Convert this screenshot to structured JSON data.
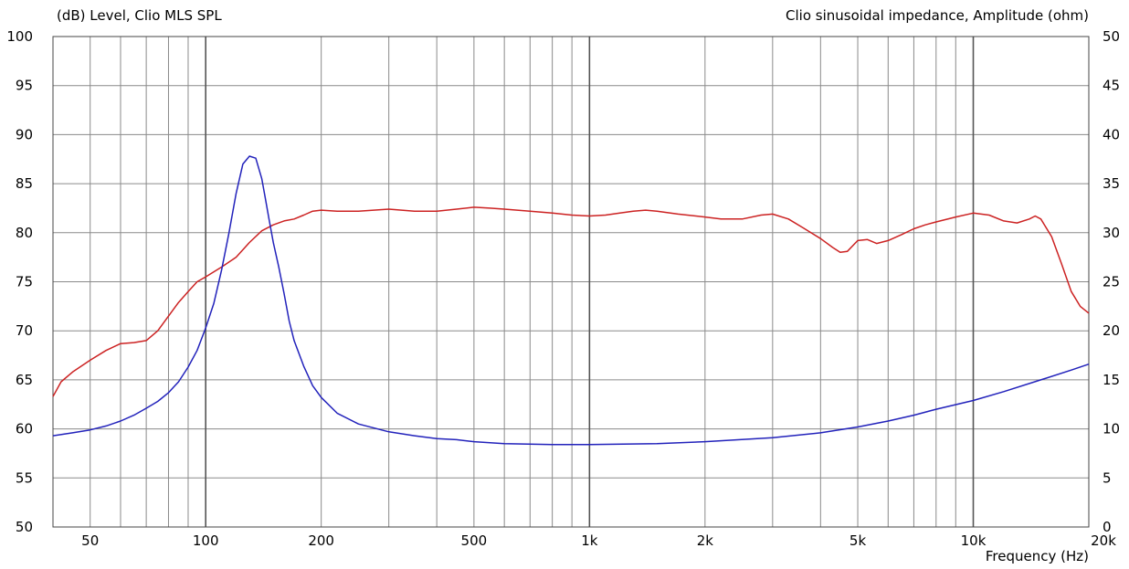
{
  "chart_data": {
    "type": "line",
    "left_axis_title": "(dB)  Level, Clio MLS SPL",
    "right_axis_title": "Clio sinusoidal impedance, Amplitude  (ohm)",
    "xlabel": "Frequency  (Hz)",
    "x_scale": "log",
    "xlim": [
      40,
      20000
    ],
    "x_ticks": [
      {
        "v": 50,
        "label": "50"
      },
      {
        "v": 100,
        "label": "100"
      },
      {
        "v": 200,
        "label": "200"
      },
      {
        "v": 500,
        "label": "500"
      },
      {
        "v": 1000,
        "label": "1k"
      },
      {
        "v": 2000,
        "label": "2k"
      },
      {
        "v": 5000,
        "label": "5k"
      },
      {
        "v": 10000,
        "label": "10k"
      },
      {
        "v": 20000,
        "label": "20k"
      }
    ],
    "ylim_left": [
      50,
      100
    ],
    "y_ticks_left": [
      100,
      95,
      90,
      85,
      80,
      75,
      70,
      65,
      60,
      55,
      50
    ],
    "ylim_right": [
      0,
      50
    ],
    "y_ticks_right": [
      50,
      45,
      40,
      35,
      30,
      25,
      20,
      15,
      10,
      5,
      0
    ],
    "grid": true,
    "series": [
      {
        "axis": "left",
        "color": "#cc2222",
        "x": [
          40,
          42,
          45,
          50,
          55,
          60,
          65,
          70,
          75,
          80,
          85,
          90,
          95,
          100,
          110,
          120,
          130,
          140,
          150,
          160,
          170,
          180,
          190,
          200,
          220,
          250,
          300,
          350,
          400,
          450,
          500,
          550,
          600,
          700,
          800,
          900,
          1000,
          1100,
          1200,
          1300,
          1400,
          1500,
          1700,
          2000,
          2200,
          2500,
          2800,
          3000,
          3300,
          3600,
          4000,
          4300,
          4500,
          4700,
          5000,
          5300,
          5600,
          6000,
          6500,
          7000,
          7500,
          8000,
          9000,
          10000,
          11000,
          12000,
          13000,
          14000,
          14500,
          15000,
          16000,
          17000,
          18000,
          19000,
          20000
        ],
        "y": [
          63.3,
          64.8,
          65.8,
          67.0,
          68.0,
          68.7,
          68.8,
          69.0,
          70.0,
          71.5,
          72.9,
          74.0,
          75.0,
          75.5,
          76.5,
          77.5,
          79.0,
          80.2,
          80.8,
          81.2,
          81.4,
          81.8,
          82.2,
          82.3,
          82.2,
          82.2,
          82.4,
          82.2,
          82.2,
          82.4,
          82.6,
          82.5,
          82.4,
          82.2,
          82.0,
          81.8,
          81.7,
          81.8,
          82.0,
          82.2,
          82.3,
          82.2,
          81.9,
          81.6,
          81.4,
          81.4,
          81.8,
          81.9,
          81.4,
          80.5,
          79.4,
          78.5,
          78.0,
          78.1,
          79.2,
          79.3,
          78.9,
          79.2,
          79.8,
          80.4,
          80.8,
          81.1,
          81.6,
          82.0,
          81.8,
          81.2,
          81.0,
          81.4,
          81.7,
          81.4,
          79.6,
          76.8,
          74.0,
          72.5,
          71.8
        ]
      },
      {
        "axis": "right",
        "color": "#2222bb",
        "x": [
          40,
          45,
          50,
          55,
          60,
          65,
          70,
          75,
          80,
          85,
          90,
          95,
          100,
          105,
          110,
          115,
          120,
          125,
          130,
          135,
          140,
          143,
          146,
          150,
          155,
          160,
          165,
          170,
          180,
          190,
          200,
          220,
          250,
          300,
          350,
          400,
          450,
          500,
          600,
          800,
          1000,
          1500,
          2000,
          3000,
          4000,
          5000,
          6000,
          7000,
          8000,
          10000,
          12000,
          15000,
          18000,
          20000
        ],
        "y": [
          9.3,
          9.6,
          9.9,
          10.3,
          10.8,
          11.4,
          12.1,
          12.8,
          13.7,
          14.8,
          16.3,
          18.0,
          20.3,
          22.8,
          26.2,
          30.0,
          34.0,
          37.0,
          37.8,
          37.6,
          35.5,
          33.5,
          31.5,
          29.0,
          26.5,
          23.8,
          21.0,
          19.0,
          16.4,
          14.4,
          13.2,
          11.6,
          10.5,
          9.7,
          9.3,
          9.0,
          8.9,
          8.7,
          8.5,
          8.4,
          8.4,
          8.5,
          8.7,
          9.1,
          9.6,
          10.2,
          10.8,
          11.4,
          12.0,
          12.9,
          13.8,
          15.0,
          16.0,
          16.6
        ]
      }
    ]
  }
}
